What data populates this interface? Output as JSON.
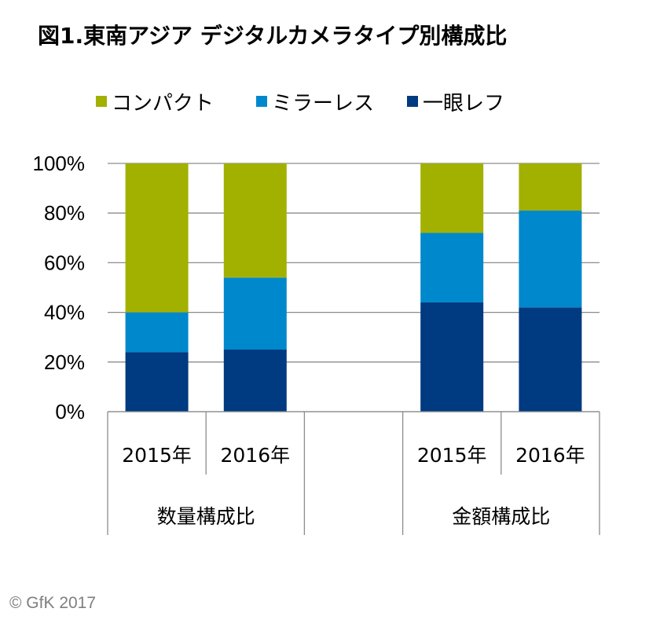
{
  "title": "図1.東南アジア デジタルカメラタイプ別構成比",
  "copyright": "© GfK 2017",
  "chart_data": {
    "type": "bar",
    "stacked": true,
    "percent_stacked": true,
    "title": "図1.東南アジア デジタルカメラタイプ別構成比",
    "legend_position": "top",
    "grid": true,
    "ylim": [
      0,
      100
    ],
    "y_ticks": [
      "0%",
      "20%",
      "40%",
      "60%",
      "80%",
      "100%"
    ],
    "categories": [
      "2015年",
      "2016年",
      "",
      "2015年",
      "2016年"
    ],
    "groups": [
      {
        "label": "数量構成比",
        "categories": [
          "2015年",
          "2016年"
        ]
      },
      {
        "label": "金額構成比",
        "categories": [
          "2015年",
          "2016年"
        ]
      }
    ],
    "series": [
      {
        "name": "一眼レフ",
        "color": "#003a80",
        "values": [
          24,
          25,
          null,
          44,
          42
        ]
      },
      {
        "name": "ミラーレス",
        "color": "#0088cc",
        "values": [
          16,
          29,
          null,
          28,
          39
        ]
      },
      {
        "name": "コンパクト",
        "color": "#a2b000",
        "values": [
          60,
          46,
          null,
          28,
          19
        ]
      }
    ],
    "legend_order": [
      "コンパクト",
      "ミラーレス",
      "一眼レフ"
    ]
  }
}
